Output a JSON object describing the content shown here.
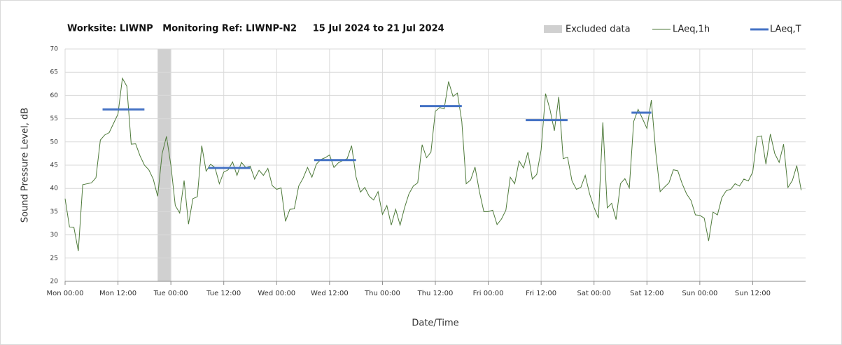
{
  "chart_data": {
    "type": "line",
    "title": "Worksite: LIWNP   Monitoring Ref: LIWNP-N2     15 Jul 2024 to 21 Jul 2024",
    "x_label": "Date/Time",
    "y_label": "Sound Pressure Level, dB",
    "xlim": [
      0,
      168
    ],
    "xticks": [
      {
        "value": 0,
        "label": "Mon 00:00"
      },
      {
        "value": 12,
        "label": "Mon 12:00"
      },
      {
        "value": 24,
        "label": "Tue 00:00"
      },
      {
        "value": 36,
        "label": "Tue 12:00"
      },
      {
        "value": 48,
        "label": "Wed 00:00"
      },
      {
        "value": 60,
        "label": "Wed 12:00"
      },
      {
        "value": 72,
        "label": "Thu 00:00"
      },
      {
        "value": 84,
        "label": "Thu 12:00"
      },
      {
        "value": 96,
        "label": "Fri 00:00"
      },
      {
        "value": 108,
        "label": "Fri 12:00"
      },
      {
        "value": 120,
        "label": "Sat 00:00"
      },
      {
        "value": 132,
        "label": "Sat 12:00"
      },
      {
        "value": 144,
        "label": "Sun 00:00"
      },
      {
        "value": 156,
        "label": "Sun 12:00"
      }
    ],
    "ylim": [
      20,
      70
    ],
    "yticks": [
      20,
      25,
      30,
      35,
      40,
      45,
      50,
      55,
      60,
      65,
      70
    ],
    "grid": true,
    "legend": "top-right",
    "excluded": {
      "name": "Excluded data",
      "color": "#d0d0d0",
      "x": [
        21,
        24
      ]
    },
    "series": [
      {
        "name": "LAeq,1h",
        "color": "#4e7a3a",
        "x": [
          0,
          1,
          2,
          3,
          4,
          5,
          6,
          7,
          8,
          9,
          10,
          11,
          12,
          13,
          14,
          15,
          16,
          17,
          18,
          19,
          20,
          21,
          22,
          23,
          24,
          25,
          26,
          27,
          28,
          29,
          30,
          31,
          32,
          33,
          34,
          35,
          36,
          37,
          38,
          39,
          40,
          41,
          42,
          43,
          44,
          45,
          46,
          47,
          48,
          49,
          50,
          51,
          52,
          53,
          54,
          55,
          56,
          57,
          58,
          59,
          60,
          61,
          62,
          63,
          64,
          65,
          66,
          67,
          68,
          69,
          70,
          71,
          72,
          73,
          74,
          75,
          76,
          77,
          78,
          79,
          80,
          81,
          82,
          83,
          84,
          85,
          86,
          87,
          88,
          89,
          90,
          91,
          92,
          93,
          94,
          95,
          96,
          97,
          98,
          99,
          100,
          101,
          102,
          103,
          104,
          105,
          106,
          107,
          108,
          109,
          110,
          111,
          112,
          113,
          114,
          115,
          116,
          117,
          118,
          119,
          120,
          121,
          122,
          123,
          124,
          125,
          126,
          127,
          128,
          129,
          130,
          131,
          132,
          133,
          134,
          135,
          136,
          137,
          138,
          139,
          140,
          141,
          142,
          143,
          144,
          145,
          146,
          147,
          148,
          149,
          150,
          151,
          152,
          153,
          154,
          155,
          156,
          157,
          158,
          159,
          160,
          161,
          162,
          163,
          164,
          165,
          166,
          167
        ],
        "values": [
          37.8,
          31.7,
          31.6,
          26.5,
          40.8,
          41.0,
          41.2,
          42.3,
          50.4,
          51.5,
          52,
          54,
          56,
          63.7,
          62,
          49.5,
          49.6,
          47,
          45,
          44,
          42,
          38.3,
          47.4,
          51.2,
          45,
          36.3,
          34.7,
          41.7,
          32.3,
          37.8,
          38.2,
          49.2,
          43.7,
          45.2,
          44.5,
          41,
          43.5,
          44,
          45.7,
          42.8,
          45.6,
          44.5,
          44.8,
          42,
          43.9,
          42.8,
          44.3,
          40.6,
          39.8,
          40.1,
          32.9,
          35.5,
          35.6,
          40.5,
          42.2,
          44.5,
          42.4,
          45.2,
          46.2,
          46.6,
          47.2,
          44.5,
          45.5,
          46,
          46.4,
          49.2,
          42.5,
          39.2,
          40.2,
          38.3,
          37.5,
          39.3,
          34.4,
          36.3,
          32.1,
          35.5,
          32.1,
          35.8,
          38.8,
          40.5,
          41.2,
          49.4,
          46.6,
          47.8,
          56.6,
          57.4,
          57.1,
          63,
          59.8,
          60.5,
          54.4,
          41,
          41.8,
          44.6,
          39.3,
          35,
          35,
          35.3,
          32.2,
          33.4,
          35.3,
          42.4,
          41,
          45.9,
          44.4,
          47.8,
          42,
          43,
          48.3,
          60.4,
          57,
          52.4,
          59.7,
          46.4,
          46.7,
          41.6,
          39.8,
          40.2,
          42.8,
          38.8,
          35.9,
          33.6,
          54.2,
          35.8,
          36.8,
          33.3,
          41,
          42.1,
          40.1,
          54.4,
          57,
          55,
          52.9,
          59,
          47.8,
          39.3,
          40.3,
          41.2,
          44,
          43.8,
          41,
          38.8,
          37.4,
          34.3,
          34.2,
          33.6,
          28.7,
          34.9,
          34.3,
          38,
          39.5,
          39.8,
          41,
          40.5,
          42,
          41.6,
          43.5,
          51.1,
          51.3,
          45.2,
          51.7,
          47.5,
          45.6,
          49.5,
          40.2,
          41.7,
          44.9,
          39.6
        ]
      }
    ],
    "periods": {
      "name": "LAeq,T",
      "color": "#4472c4",
      "segments": [
        {
          "x": [
            8.5,
            18
          ],
          "value": 57.0
        },
        {
          "x": [
            32.5,
            42
          ],
          "value": 44.4
        },
        {
          "x": [
            56.5,
            66
          ],
          "value": 46.1
        },
        {
          "x": [
            80.5,
            90
          ],
          "value": 57.7
        },
        {
          "x": [
            104.5,
            114
          ],
          "value": 54.7
        },
        {
          "x": [
            128.5,
            133
          ],
          "value": 56.3
        }
      ]
    }
  }
}
